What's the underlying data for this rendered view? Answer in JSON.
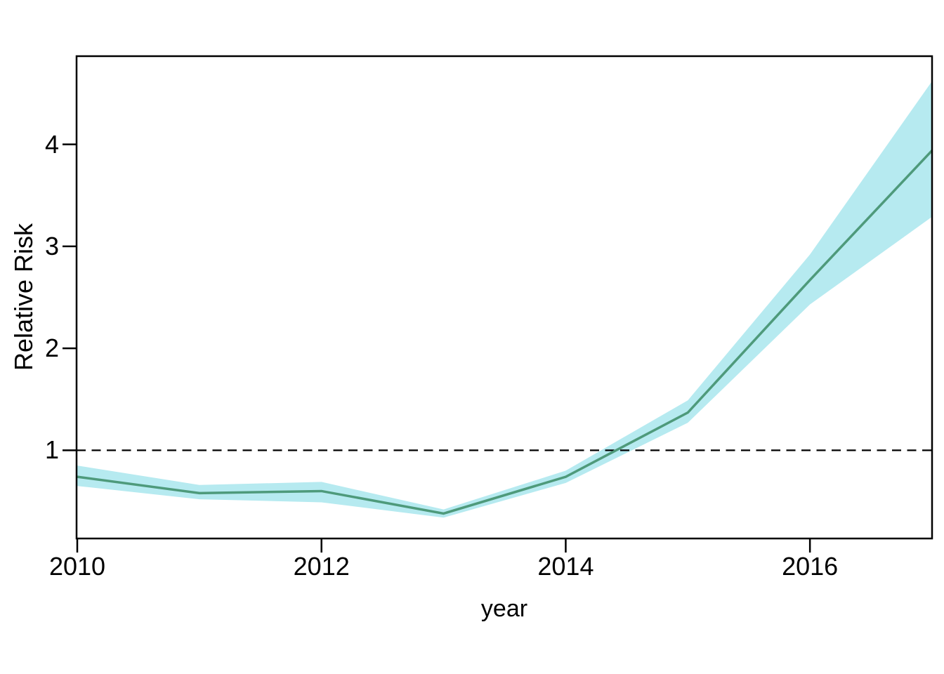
{
  "figure": {
    "background": "#ffffff",
    "axis_color": "#000000",
    "text_color": "#000000"
  },
  "chart_data": {
    "type": "line",
    "title": "",
    "xlabel": "year",
    "ylabel": "Relative Risk",
    "x": [
      2010,
      2011,
      2012,
      2013,
      2014,
      2015,
      2016,
      2017
    ],
    "series": [
      {
        "name": "relative-risk-estimate",
        "role": "estimate",
        "color": "#4e9a7b",
        "values": [
          0.74,
          0.58,
          0.6,
          0.38,
          0.74,
          1.37,
          2.67,
          3.94
        ]
      },
      {
        "name": "ci-lower",
        "role": "lower",
        "color": "#b6eaf0",
        "values": [
          0.65,
          0.52,
          0.49,
          0.34,
          0.68,
          1.27,
          2.43,
          3.29
        ]
      },
      {
        "name": "ci-upper",
        "role": "upper",
        "color": "#b6eaf0",
        "values": [
          0.85,
          0.66,
          0.69,
          0.42,
          0.8,
          1.49,
          2.92,
          4.62
        ]
      }
    ],
    "band": {
      "fill": "#b6eaf0",
      "lower": "ci-lower",
      "upper": "ci-upper"
    },
    "reference_line": {
      "y": 1,
      "style": "dashed",
      "color": "#000000"
    },
    "x_ticks": [
      2010,
      2012,
      2014,
      2016
    ],
    "x_tick_labels": [
      "2010",
      "2012",
      "2014",
      "2016"
    ],
    "y_ticks": [
      1,
      2,
      3,
      4
    ],
    "y_tick_labels": [
      "1",
      "2",
      "3",
      "4"
    ],
    "x_range": [
      2010,
      2017
    ],
    "y_range": [
      0.135,
      4.865
    ],
    "grid": false,
    "legend": "none"
  }
}
